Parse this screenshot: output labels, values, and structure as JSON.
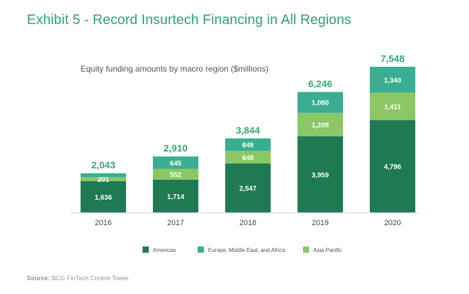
{
  "title": "Exhibit 5 - Record Insurtech Financing in All Regions",
  "source": {
    "label": "Source:",
    "text": "BCG FinTech Control Tower."
  },
  "colors": {
    "americas": "#1e7a52",
    "emea": "#3aae90",
    "apac": "#8bc865",
    "total": "#3aa672",
    "segment_text": "#ffffff",
    "axis_text": "#444444"
  },
  "chart_data": {
    "type": "bar",
    "stacked": true,
    "subtitle": "Equity funding amounts by macro region ($millions)",
    "categories": [
      "2016",
      "2017",
      "2018",
      "2019",
      "2020"
    ],
    "series": [
      {
        "name": "Americas",
        "values": [
          1636,
          1714,
          2547,
          3959,
          4796
        ]
      },
      {
        "name": "Asia Pacific",
        "values": [
          201,
          552,
          648,
          1208,
          1411
        ]
      },
      {
        "name": "Europe, Middle East, and Africa",
        "values": [
          206,
          645,
          649,
          1080,
          1340
        ]
      }
    ],
    "segment_labels": [
      [
        "1,636",
        "201",
        ""
      ],
      [
        "1,714",
        "552",
        "645"
      ],
      [
        "2,547",
        "648",
        "649"
      ],
      [
        "3,959",
        "1,208",
        "1,080"
      ],
      [
        "4,796",
        "1,411",
        "1,340"
      ]
    ],
    "totals": [
      "2,043",
      "2,910",
      "3,844",
      "6,246",
      "7,548"
    ],
    "legend": [
      "Americas",
      "Europe, Middle East, and Africa",
      "Asia Pacific"
    ],
    "legend_placement": "bottom",
    "ylim": [
      0,
      7548
    ],
    "grid": false
  }
}
